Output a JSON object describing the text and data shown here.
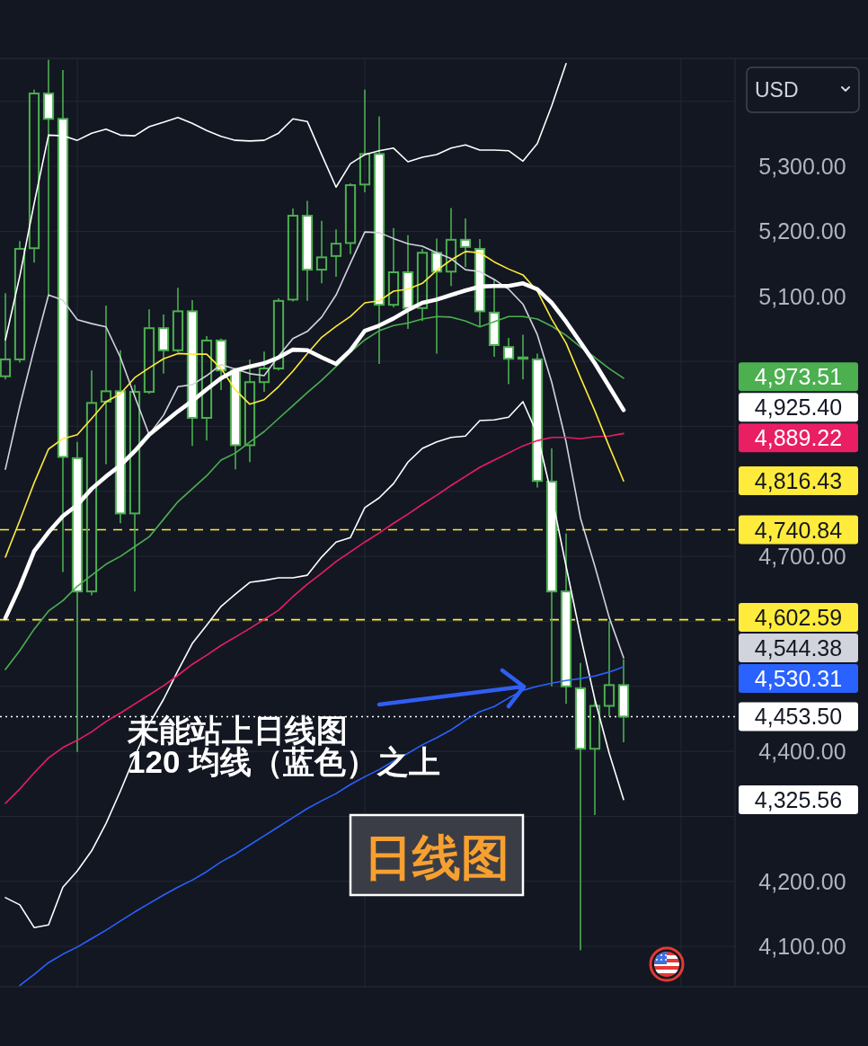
{
  "chart_data": {
    "type": "candlestick",
    "color": "#4caf50",
    "categories": [
      null,
      null,
      null,
      null,
      null,
      null,
      null,
      null,
      null,
      null,
      null,
      null,
      null,
      null,
      null,
      null,
      null,
      null,
      null,
      null,
      null,
      null,
      null,
      null,
      null,
      null,
      null,
      null,
      null,
      null,
      null,
      null,
      null,
      null,
      null,
      null,
      null,
      null,
      null,
      null,
      null,
      null,
      null,
      null
    ],
    "ohlc": [
      [
        4977,
        5105,
        4972,
        5003
      ],
      [
        5003,
        5185,
        4998,
        5173
      ],
      [
        5174,
        5418,
        5152,
        5412
      ],
      [
        5412,
        5464,
        5102,
        5373
      ],
      [
        5373,
        5448,
        4676,
        4853
      ],
      [
        4851,
        4876,
        4399,
        4646
      ],
      [
        4646,
        4986,
        4640,
        4936
      ],
      [
        4938,
        5086,
        4842,
        4954
      ],
      [
        4954,
        5017,
        4751,
        4766
      ],
      [
        4766,
        4964,
        4646,
        4953
      ],
      [
        4953,
        5080,
        4950,
        5051
      ],
      [
        5051,
        5072,
        4981,
        5017
      ],
      [
        5017,
        5113,
        5014,
        5077
      ],
      [
        5077,
        5094,
        4870,
        4913
      ],
      [
        4913,
        5039,
        4878,
        5032
      ],
      [
        5032,
        5035,
        4956,
        4986
      ],
      [
        4986,
        4990,
        4834,
        4871
      ],
      [
        4871,
        5003,
        4845,
        4968
      ],
      [
        4968,
        5015,
        4953,
        4989
      ],
      [
        4989,
        5097,
        4986,
        5093
      ],
      [
        5095,
        5235,
        5092,
        5224
      ],
      [
        5224,
        5247,
        5093,
        5141
      ],
      [
        5141,
        5216,
        5120,
        5160
      ],
      [
        5162,
        5203,
        5130,
        5181
      ],
      [
        5182,
        5274,
        5165,
        5271
      ],
      [
        5272,
        5418,
        5260,
        5319
      ],
      [
        5319,
        5377,
        4996,
        5087
      ],
      [
        5087,
        5205,
        5083,
        5137
      ],
      [
        5137,
        5194,
        5050,
        5082
      ],
      [
        5082,
        5173,
        5062,
        5167
      ],
      [
        5167,
        5189,
        5012,
        5138
      ],
      [
        5138,
        5236,
        5116,
        5187
      ],
      [
        5187,
        5220,
        5145,
        5176
      ],
      [
        5173,
        5188,
        5053,
        5077
      ],
      [
        5075,
        5127,
        5007,
        5025
      ],
      [
        5022,
        5036,
        4965,
        5004
      ],
      [
        5006,
        5041,
        4972,
        5004
      ],
      [
        5003,
        5012,
        4806,
        4816
      ],
      [
        4815,
        4866,
        4500,
        4646
      ],
      [
        4646,
        4735,
        4473,
        4500
      ],
      [
        4497,
        4536,
        4094,
        4404
      ],
      [
        4404,
        4480,
        4302,
        4470
      ],
      [
        4470,
        4600,
        4454,
        4502
      ],
      [
        4502,
        4542,
        4414,
        4453.5
      ]
    ],
    "series": [
      {
        "type": "line",
        "color": "#ffffff",
        "values": [
          5033,
          5131,
          5243,
          5348,
          5347,
          5340,
          5351,
          5357,
          5348,
          5347,
          5361,
          5368,
          5375,
          5366,
          5355,
          5346,
          5340,
          5339,
          5340,
          5351,
          5373,
          5369,
          5318,
          5268,
          5304,
          5318,
          5324,
          5328,
          5307,
          5314,
          5318,
          5328,
          5333,
          5325,
          5325,
          5324,
          5308,
          5335,
          5393,
          5458,
          null,
          null,
          null,
          null
        ]
      },
      {
        "type": "line",
        "color": "#ffffff",
        "values": [
          4175,
          4164,
          4129,
          4133,
          4191,
          4216,
          4247,
          4289,
          4339,
          4392,
          4442,
          4480,
          4524,
          4566,
          4594,
          4623,
          4642,
          4660,
          4663,
          4667,
          4667,
          4671,
          4699,
          4722,
          4729,
          4775,
          4790,
          4812,
          4845,
          4866,
          4876,
          4883,
          4885,
          4909,
          4910,
          4914,
          4938,
          4888,
          4793,
          4685,
          4578,
          4480,
          4397,
          4326
        ]
      },
      {
        "type": "line",
        "color": "#d1d4dc",
        "values": [
          4834,
          4931,
          5019,
          5102,
          5094,
          5064,
          5058,
          5053,
          5006,
          4946,
          4887,
          4917,
          4961,
          4964,
          4978,
          4995,
          4988,
          4981,
          4978,
          5008,
          5035,
          5046,
          5068,
          5102,
          5151,
          5199,
          5198,
          5189,
          5181,
          5177,
          5167,
          5158,
          5141,
          5138,
          5126,
          5111,
          5088,
          5041,
          4968,
          4876,
          4759,
          4685,
          4606,
          4544
        ]
      },
      {
        "type": "line",
        "color": "#2962ff",
        "values": [
          null,
          4040,
          4057,
          4075,
          4088,
          4099,
          4112,
          4125,
          4139,
          4153,
          4166,
          4179,
          4191,
          4202,
          4215,
          4230,
          4242,
          4256,
          4270,
          4284,
          4298,
          4312,
          4324,
          4335,
          4349,
          4361,
          4372,
          4385,
          4397,
          4410,
          4421,
          4433,
          4448,
          4461,
          4469,
          4482,
          4494,
          4500,
          4505,
          4509,
          4512,
          4516,
          4522,
          4530
        ]
      },
      {
        "type": "line",
        "color": "#e91e63",
        "values": [
          4320,
          4342,
          4367,
          4390,
          4406,
          4417,
          4430,
          4446,
          4459,
          4473,
          4487,
          4501,
          4517,
          4534,
          4548,
          4563,
          4576,
          4589,
          4603,
          4617,
          4638,
          4657,
          4674,
          4692,
          4707,
          4722,
          4736,
          4751,
          4765,
          4780,
          4794,
          4809,
          4823,
          4837,
          4848,
          4859,
          4870,
          4878,
          4883,
          4883,
          4881,
          4884,
          4885,
          4889
        ]
      },
      {
        "type": "line",
        "color": "#4caf50",
        "values": [
          4526,
          4555,
          4588,
          4616,
          4632,
          4654,
          4671,
          4688,
          4700,
          4715,
          4730,
          4757,
          4784,
          4804,
          4824,
          4848,
          4859,
          4876,
          4892,
          4912,
          4932,
          4952,
          4971,
          4992,
          5014,
          5033,
          5047,
          5055,
          5059,
          5065,
          5069,
          5068,
          5062,
          5053,
          5061,
          5069,
          5069,
          5065,
          5054,
          5040,
          5022,
          5006,
          4989,
          4974
        ]
      },
      {
        "type": "line",
        "color": "#ffeb3b",
        "values": [
          4699,
          4755,
          4813,
          4865,
          4881,
          4887,
          4912,
          4938,
          4950,
          4975,
          4990,
          5004,
          5012,
          5011,
          5011,
          4989,
          4956,
          4934,
          4941,
          4961,
          4985,
          5012,
          5037,
          5054,
          5069,
          5090,
          5093,
          5108,
          5111,
          5120,
          5140,
          5156,
          5169,
          5167,
          5153,
          5142,
          5133,
          5108,
          5065,
          5028,
          4975,
          4924,
          4869,
          4816
        ]
      },
      {
        "type": "line",
        "color": "#ffffff",
        "values": [
          4605,
          4653,
          4708,
          4737,
          4762,
          4779,
          4804,
          4823,
          4840,
          4862,
          4887,
          4905,
          4923,
          4939,
          4957,
          4974,
          4986,
          4992,
          4997,
          5006,
          5018,
          5017,
          5006,
          4996,
          5017,
          5047,
          5055,
          5066,
          5079,
          5090,
          5095,
          5102,
          5109,
          5115,
          5116,
          5116,
          5120,
          5111,
          5090,
          5061,
          5029,
          4997,
          4961,
          4925
        ]
      }
    ],
    "ylim": [
      4038,
      5466
    ],
    "yticks": [
      {
        "value": 4100,
        "label": "4,100.00"
      },
      {
        "value": 4200,
        "label": "4,200.00"
      },
      {
        "value": 4300,
        "label": null
      },
      {
        "value": 4400,
        "label": "4,400.00"
      },
      {
        "value": 4500,
        "label": null
      },
      {
        "value": 4600,
        "label": null
      },
      {
        "value": 4700,
        "label": "4,700.00"
      },
      {
        "value": 4800,
        "label": null
      },
      {
        "value": 4900,
        "label": null
      },
      {
        "value": 5000,
        "label": null
      },
      {
        "value": 5100,
        "label": "5,100.00"
      },
      {
        "value": 5200,
        "label": "5,200.00"
      },
      {
        "value": 5300,
        "label": "5,300.00"
      },
      {
        "value": 5400,
        "label": null
      }
    ],
    "ylabel": "USD",
    "ref_lines": [
      {
        "axis": "y",
        "value": 4740.84,
        "label": "4,740.84",
        "color": "#ffeb3b",
        "line_style": "dashed"
      },
      {
        "axis": "y",
        "value": 4602.59,
        "label": "4,602.59",
        "color": "#ffeb3b",
        "line_style": "dashed"
      },
      {
        "axis": "y",
        "value": 4453.5,
        "label": "4,453.50",
        "color": "#ffffff",
        "line_style": "dotted"
      }
    ],
    "annotations": [
      "未能站上日线图\n120 均线（蓝色）之上",
      "日线图",
      "4,973.51",
      "4,925.40",
      "4,889.22",
      "4,816.43",
      "4,544.38",
      "4,530.31",
      "4,325.56"
    ],
    "grid": true,
    "tick_labels": "y"
  }
}
